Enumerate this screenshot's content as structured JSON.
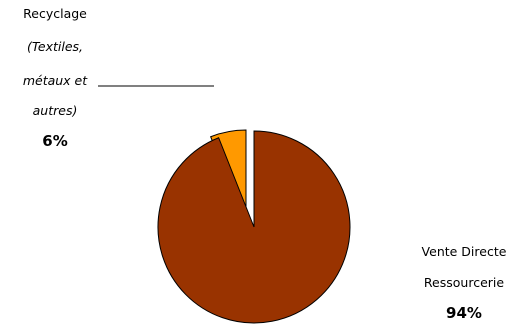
{
  "chart_data": {
    "type": "pie",
    "exploded": true,
    "slices": [
      {
        "label_lines": [
          "Recyclage",
          "(Textiles,",
          "métaux et",
          "autres)"
        ],
        "value": 6,
        "percent_label": "6%",
        "color": "#ff9900"
      },
      {
        "label_lines": [
          "Vente Directe",
          "Ressourcerie"
        ],
        "value": 94,
        "percent_label": "94%",
        "color": "#993300"
      }
    ],
    "edge_color": "#000000",
    "leader_line_color": "#000000"
  }
}
